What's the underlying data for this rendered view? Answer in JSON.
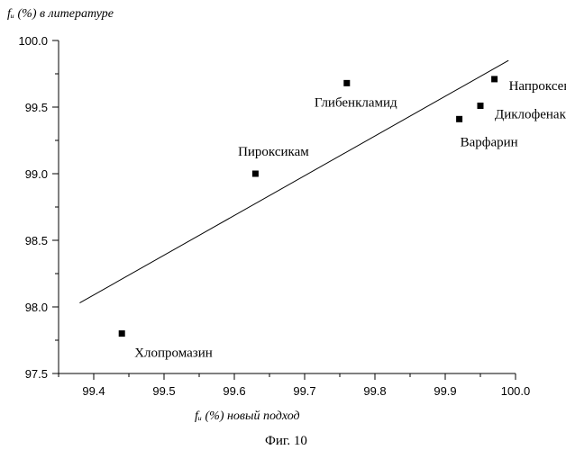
{
  "chart_data": {
    "type": "scatter",
    "xlabel": "fᵤ (%) новый подход",
    "ylabel": "fᵤ (%) в литературе",
    "caption": "Фиг. 10",
    "xlim": [
      99.35,
      100.0
    ],
    "ylim": [
      97.5,
      100.0
    ],
    "x_ticks": [
      "99.4",
      "99.5",
      "99.6",
      "99.7",
      "99.8",
      "99.9",
      "100.0"
    ],
    "y_ticks": [
      "97.5",
      "98.0",
      "98.5",
      "99.0",
      "99.5",
      "100.0"
    ],
    "grid": false,
    "points": [
      {
        "label": "Хлопромазин",
        "x": 99.44,
        "y": 97.8
      },
      {
        "label": "Пироксикам",
        "x": 99.63,
        "y": 99.0
      },
      {
        "label": "Глибенкламид",
        "x": 99.76,
        "y": 99.68
      },
      {
        "label": "Варфарин",
        "x": 99.92,
        "y": 99.41
      },
      {
        "label": "Диклофенак",
        "x": 99.95,
        "y": 99.51
      },
      {
        "label": "Напроксен",
        "x": 99.97,
        "y": 99.71
      }
    ],
    "fit_line": {
      "x": [
        99.38,
        99.99
      ],
      "y": [
        98.03,
        99.85
      ]
    }
  }
}
